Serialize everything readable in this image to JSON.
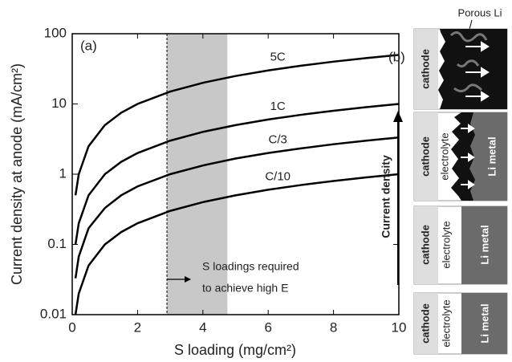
{
  "chart_data": {
    "type": "line",
    "panel_label": "(a)",
    "x_label": "S loading (mg/cm²)",
    "y_label": "Current density at anode (mA/cm²)",
    "x": [
      0.1,
      0.2,
      0.5,
      1,
      1.5,
      2,
      3,
      4,
      5,
      6,
      7,
      8,
      9,
      10
    ],
    "series": [
      {
        "name": "5C",
        "color": "#000000",
        "values": [
          0.5,
          1,
          2.5,
          5,
          7.5,
          10,
          15,
          20,
          25,
          30,
          35,
          40,
          45,
          50
        ]
      },
      {
        "name": "1C",
        "color": "#000000",
        "values": [
          0.1,
          0.2,
          0.5,
          1,
          1.5,
          2,
          3,
          4,
          5,
          6,
          7,
          8,
          9,
          10
        ]
      },
      {
        "name": "C/3",
        "color": "#000000",
        "values": [
          0.033,
          0.067,
          0.17,
          0.33,
          0.5,
          0.67,
          1,
          1.33,
          1.67,
          2,
          2.33,
          2.67,
          3,
          3.33
        ]
      },
      {
        "name": "C/10",
        "color": "#000000",
        "values": [
          0.01,
          0.02,
          0.05,
          0.1,
          0.15,
          0.2,
          0.3,
          0.4,
          0.5,
          0.6,
          0.7,
          0.8,
          0.9,
          1
        ]
      }
    ],
    "xlim": [
      0,
      10
    ],
    "xticks": [
      0,
      2,
      4,
      6,
      8,
      10
    ],
    "ylim": [
      0.01,
      100
    ],
    "yticks": [
      0.01,
      0.1,
      1,
      10,
      100
    ],
    "y_scale": "log",
    "shaded_region": [
      2.9,
      4.75
    ],
    "shade_color": "#c8c8c8",
    "annotation": [
      "S loadings required",
      "to achieve high E"
    ]
  },
  "diagram": {
    "panel_label": "(b)",
    "top_label": "Porous Li",
    "arrow_label": "Current density",
    "panels": [
      {
        "cathode": "cathode"
      },
      {
        "cathode": "cathode",
        "electrolyte": "electrolyte",
        "li": "Li metal"
      },
      {
        "cathode": "cathode",
        "electrolyte": "electrolyte",
        "li": "Li metal"
      },
      {
        "cathode": "cathode",
        "electrolyte": "electrolyte",
        "li": "Li metal"
      }
    ]
  }
}
